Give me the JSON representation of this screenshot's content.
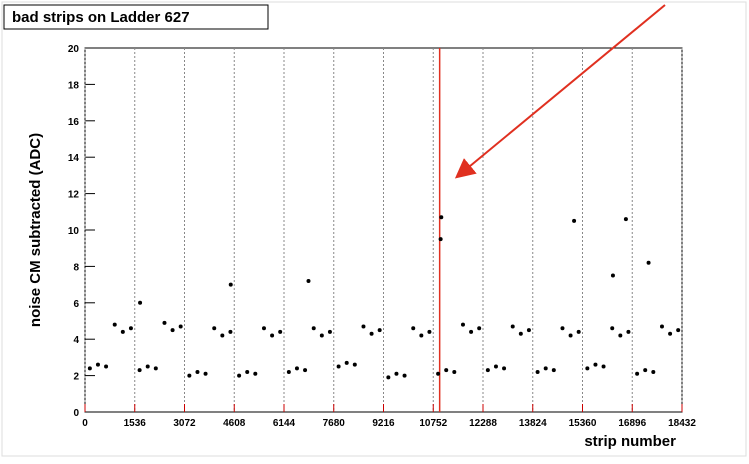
{
  "chart_data": {
    "type": "scatter",
    "title": "bad strips on Ladder 627",
    "xlabel": "strip number",
    "ylabel": "noise CM subtracted (ADC)",
    "xlim": [
      0,
      18432
    ],
    "ylim": [
      0,
      20
    ],
    "xticks": [
      0,
      1536,
      3072,
      4608,
      6144,
      7680,
      9216,
      10752,
      12288,
      13824,
      15360,
      16896,
      18432
    ],
    "yticks": [
      0,
      2,
      4,
      6,
      8,
      10,
      12,
      14,
      16,
      18,
      20
    ],
    "grid": "x",
    "color": "#000000",
    "marker_x": 10950,
    "marker_color": "#e03020",
    "x": [
      150,
      400,
      650,
      918,
      1168,
      1418,
      1686,
      1936,
      2186,
      2454,
      2704,
      2954,
      3222,
      3472,
      3722,
      3990,
      4240,
      4490,
      4758,
      5008,
      5258,
      5526,
      5776,
      6026,
      6294,
      6544,
      6794,
      7062,
      7312,
      7562,
      7830,
      8080,
      8330,
      8598,
      8848,
      9098,
      9366,
      9616,
      9866,
      10134,
      10384,
      10634,
      10902,
      11152,
      11402,
      11670,
      11920,
      12170,
      12438,
      12688,
      12938,
      13206,
      13456,
      13706,
      13974,
      14224,
      14474,
      14742,
      14992,
      15242,
      15510,
      15760,
      16010,
      16278,
      16528,
      16778,
      17046,
      17296,
      17546,
      17814,
      18064,
      18314,
      11000,
      10980,
      15100,
      16700,
      1700,
      4500,
      6900,
      16300,
      17400
    ],
    "values": [
      2.4,
      2.6,
      2.5,
      4.8,
      4.4,
      4.6,
      2.3,
      2.5,
      2.4,
      4.9,
      4.5,
      4.7,
      2.0,
      2.2,
      2.1,
      4.6,
      4.2,
      4.4,
      2.0,
      2.2,
      2.1,
      4.6,
      4.2,
      4.4,
      2.2,
      2.4,
      2.3,
      4.6,
      4.2,
      4.4,
      2.5,
      2.7,
      2.6,
      4.7,
      4.3,
      4.5,
      1.9,
      2.1,
      2.0,
      4.6,
      4.2,
      4.4,
      2.1,
      2.3,
      2.2,
      4.8,
      4.4,
      4.6,
      2.3,
      2.5,
      2.4,
      4.7,
      4.3,
      4.5,
      2.2,
      2.4,
      2.3,
      4.6,
      4.2,
      4.4,
      2.4,
      2.6,
      2.5,
      4.6,
      4.2,
      4.4,
      2.1,
      2.3,
      2.2,
      4.7,
      4.3,
      4.5,
      10.7,
      9.5,
      10.5,
      10.6,
      6.0,
      7.0,
      7.2,
      7.5,
      8.2
    ]
  }
}
